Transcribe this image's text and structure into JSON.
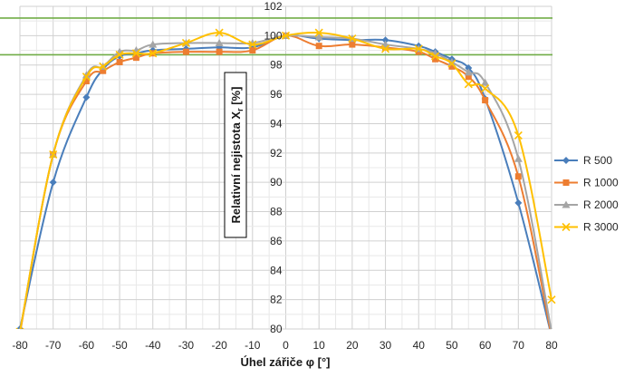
{
  "chart_data": {
    "type": "line",
    "title": "",
    "xlabel": "Úhel zářiče φ [°]",
    "ylabel": "Relativní nejistota X",
    "ylabel_sub": "r",
    "ylabel_unit": " [%]",
    "xlim": [
      -80,
      80
    ],
    "ylim": [
      80,
      102
    ],
    "xticks": [
      -80,
      -70,
      -60,
      -50,
      -40,
      -30,
      -20,
      -10,
      0,
      10,
      20,
      30,
      40,
      50,
      60,
      70,
      80
    ],
    "yticks": [
      80,
      82,
      84,
      86,
      88,
      90,
      92,
      94,
      96,
      98,
      100,
      102
    ],
    "grid": true,
    "legend_position": "right",
    "reference_lines": [
      {
        "y": 101.2,
        "color": "#70ad47"
      },
      {
        "y": 98.7,
        "color": "#70ad47"
      }
    ],
    "series": [
      {
        "name": "R 500",
        "color": "#4a7ebb",
        "marker": "diamond",
        "points": [
          [
            -80,
            80.0
          ],
          [
            -70,
            90.0
          ],
          [
            -60,
            95.8
          ],
          [
            -55,
            97.7
          ],
          [
            -50,
            98.6
          ],
          [
            -45,
            98.8
          ],
          [
            -40,
            99.0
          ],
          [
            -30,
            99.1
          ],
          [
            -20,
            99.2
          ],
          [
            -10,
            99.2
          ],
          [
            0,
            100.0
          ],
          [
            10,
            99.8
          ],
          [
            20,
            99.7
          ],
          [
            30,
            99.7
          ],
          [
            40,
            99.3
          ],
          [
            45,
            98.9
          ],
          [
            50,
            98.4
          ],
          [
            55,
            97.8
          ],
          [
            60,
            95.7
          ],
          [
            70,
            88.6
          ],
          [
            80,
            79.5
          ]
        ]
      },
      {
        "name": "R 1000",
        "color": "#ed7d31",
        "marker": "square",
        "points": [
          [
            -80,
            79.7
          ],
          [
            -70,
            91.9
          ],
          [
            -60,
            96.9
          ],
          [
            -55,
            97.6
          ],
          [
            -50,
            98.2
          ],
          [
            -45,
            98.5
          ],
          [
            -40,
            98.8
          ],
          [
            -30,
            98.9
          ],
          [
            -20,
            98.9
          ],
          [
            -10,
            99.0
          ],
          [
            0,
            100.0
          ],
          [
            10,
            99.3
          ],
          [
            20,
            99.4
          ],
          [
            30,
            99.2
          ],
          [
            40,
            98.9
          ],
          [
            45,
            98.4
          ],
          [
            50,
            97.9
          ],
          [
            55,
            97.2
          ],
          [
            60,
            95.6
          ],
          [
            70,
            90.4
          ],
          [
            80,
            79.5
          ]
        ]
      },
      {
        "name": "R 2000",
        "color": "#a5a5a5",
        "marker": "triangle",
        "points": [
          [
            -80,
            79.8
          ],
          [
            -70,
            91.9
          ],
          [
            -60,
            97.3
          ],
          [
            -55,
            97.9
          ],
          [
            -50,
            98.9
          ],
          [
            -45,
            99.0
          ],
          [
            -40,
            99.4
          ],
          [
            -30,
            99.5
          ],
          [
            -20,
            99.5
          ],
          [
            -10,
            99.5
          ],
          [
            0,
            100.0
          ],
          [
            10,
            99.9
          ],
          [
            20,
            99.8
          ],
          [
            30,
            99.4
          ],
          [
            40,
            99.1
          ],
          [
            45,
            98.8
          ],
          [
            50,
            98.2
          ],
          [
            55,
            97.5
          ],
          [
            60,
            96.8
          ],
          [
            70,
            91.6
          ],
          [
            80,
            79.8
          ]
        ]
      },
      {
        "name": "R 3000",
        "color": "#ffc000",
        "marker": "x",
        "points": [
          [
            -80,
            79.8
          ],
          [
            -70,
            91.9
          ],
          [
            -60,
            97.2
          ],
          [
            -55,
            97.9
          ],
          [
            -50,
            98.7
          ],
          [
            -45,
            98.8
          ],
          [
            -40,
            98.8
          ],
          [
            -30,
            99.5
          ],
          [
            -20,
            100.2
          ],
          [
            -10,
            99.4
          ],
          [
            0,
            100.0
          ],
          [
            10,
            100.2
          ],
          [
            20,
            99.8
          ],
          [
            30,
            99.1
          ],
          [
            40,
            99.1
          ],
          [
            45,
            98.6
          ],
          [
            50,
            98.1
          ],
          [
            55,
            96.7
          ],
          [
            60,
            96.4
          ],
          [
            70,
            93.2
          ],
          [
            80,
            82.0
          ]
        ]
      }
    ]
  }
}
